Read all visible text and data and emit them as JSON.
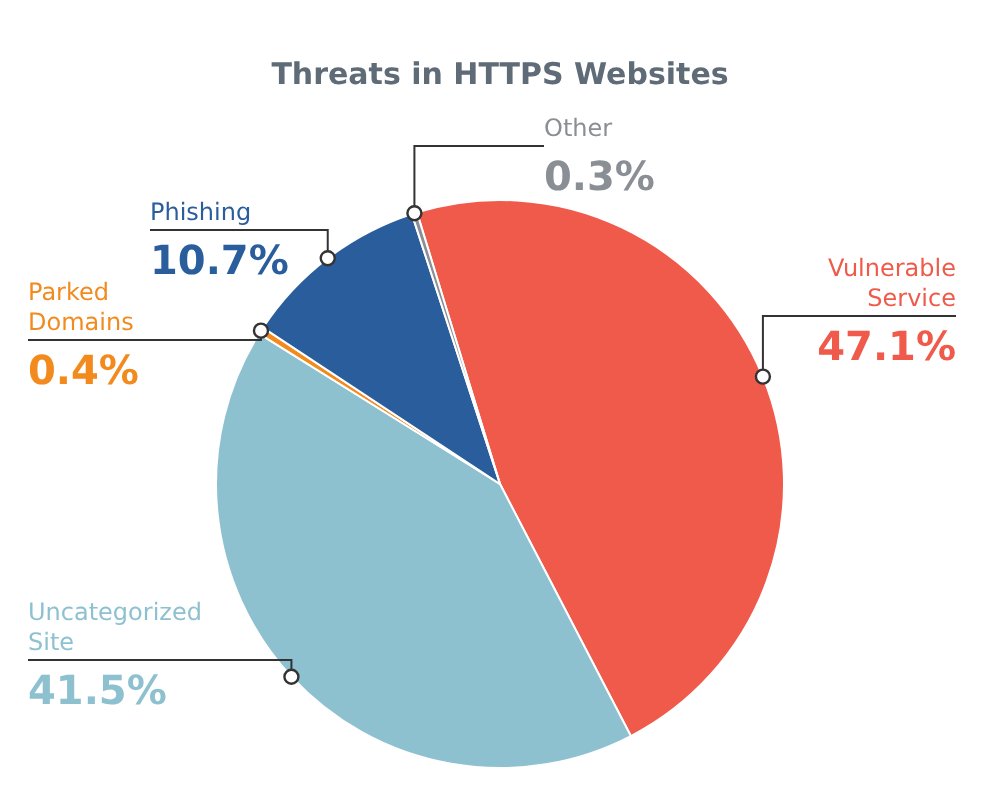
{
  "chart_data": {
    "type": "pie",
    "title": "Threats in HTTPS Websites",
    "categories": [
      "Vulnerable Service",
      "Uncategorized Site",
      "Parked Domains",
      "Phishing",
      "Other"
    ],
    "values": [
      47.1,
      41.5,
      0.4,
      10.7,
      0.3
    ],
    "value_labels": [
      "47.1%",
      "41.5%",
      "0.4%",
      "10.7%",
      "0.3%"
    ],
    "colors": [
      "#ef5a4b",
      "#8ec1d0",
      "#f28a1e",
      "#2a5d9c",
      "#8a8f95"
    ]
  }
}
